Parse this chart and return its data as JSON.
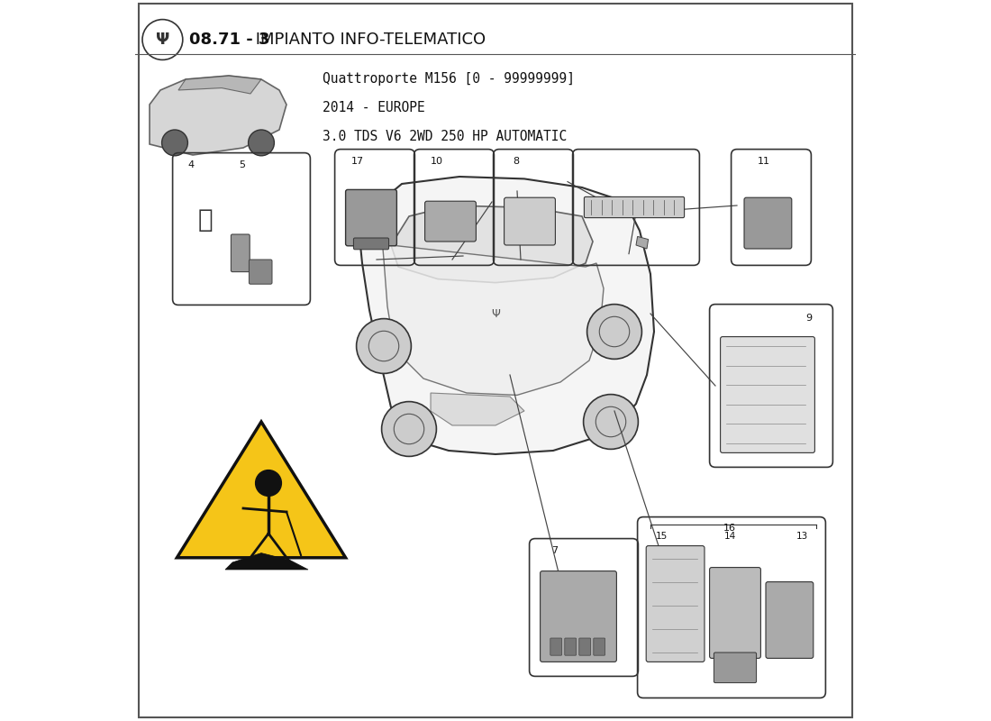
{
  "title_bold": "08.71 - 3",
  "title_normal": " IMPIANTO INFO-TELEMATICO",
  "subtitle_lines": [
    "Quattroporte M156 [0 - 99999999]",
    "2014 - EUROPE",
    "3.0 TDS V6 2WD 250 HP AUTOMATIC"
  ],
  "bg_color": "#FFFFFF",
  "border_color": "#555555",
  "line_color": "#444444"
}
